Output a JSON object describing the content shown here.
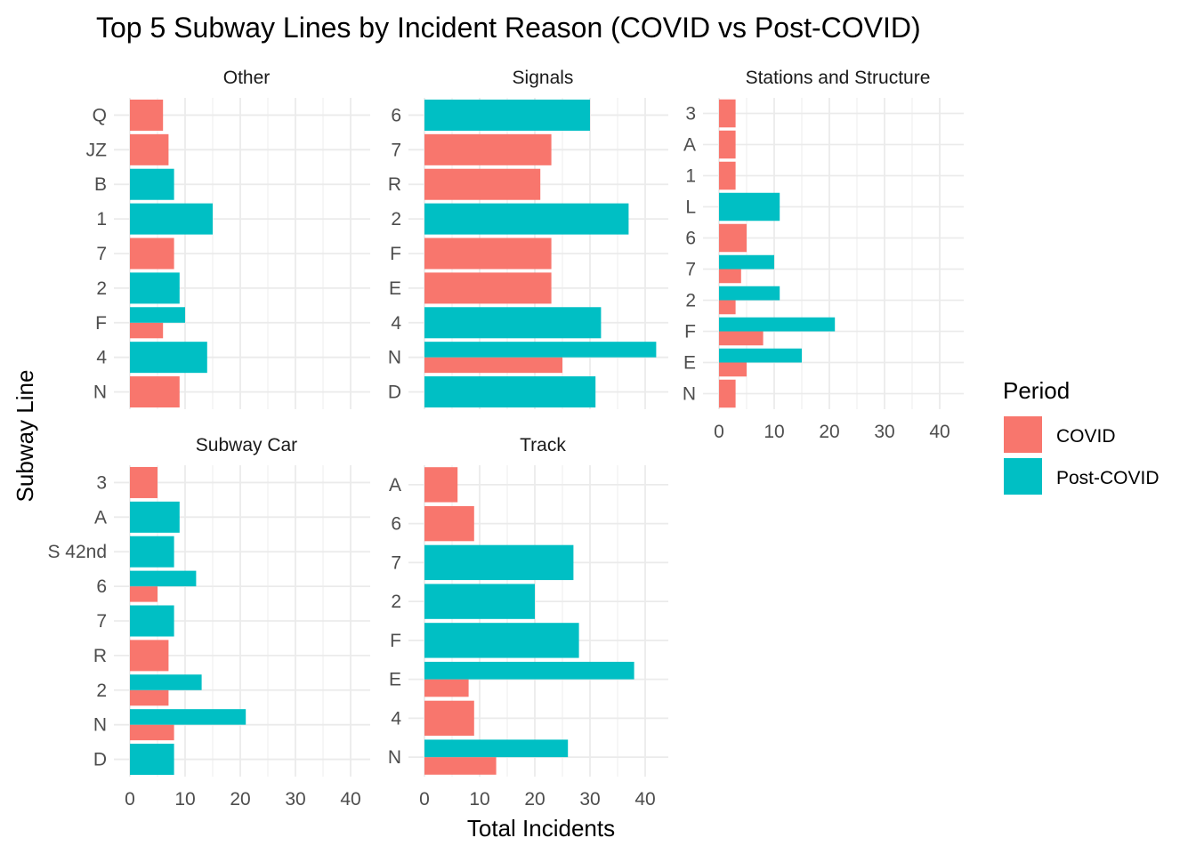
{
  "chart_data": {
    "type": "bar",
    "orientation": "horizontal",
    "title": "Top 5 Subway Lines by Incident Reason (COVID vs Post-COVID)",
    "xlabel": "Total Incidents",
    "ylabel": "Subway Line",
    "xlim": [
      0,
      44
    ],
    "xticks": [
      "0",
      "10",
      "20",
      "30",
      "40"
    ],
    "grid": true,
    "legend": {
      "title": "Period",
      "placement": "right",
      "entries": [
        {
          "name": "COVID",
          "color": "#F8766D"
        },
        {
          "name": "Post-COVID",
          "color": "#00BFC4"
        }
      ]
    },
    "panels": [
      {
        "name": "Other",
        "categories": [
          "Q",
          "JZ",
          "B",
          "1",
          "7",
          "2",
          "F",
          "4",
          "N"
        ],
        "series": [
          {
            "name": "COVID",
            "values": [
              6,
              7,
              null,
              null,
              8,
              null,
              6,
              null,
              9
            ]
          },
          {
            "name": "Post-COVID",
            "values": [
              null,
              null,
              8,
              15,
              null,
              9,
              10,
              14,
              null
            ]
          }
        ]
      },
      {
        "name": "Signals",
        "categories": [
          "6",
          "7",
          "R",
          "2",
          "F",
          "E",
          "4",
          "N",
          "D"
        ],
        "series": [
          {
            "name": "COVID",
            "values": [
              null,
              23,
              21,
              null,
              23,
              23,
              null,
              25,
              null
            ]
          },
          {
            "name": "Post-COVID",
            "values": [
              30,
              null,
              null,
              37,
              null,
              null,
              32,
              42,
              31
            ]
          }
        ]
      },
      {
        "name": "Stations and Structure",
        "categories": [
          "3",
          "A",
          "1",
          "L",
          "6",
          "7",
          "2",
          "F",
          "E",
          "N"
        ],
        "series": [
          {
            "name": "COVID",
            "values": [
              3,
              3,
              3,
              null,
              5,
              4,
              3,
              8,
              5,
              3
            ]
          },
          {
            "name": "Post-COVID",
            "values": [
              null,
              null,
              null,
              11,
              null,
              10,
              11,
              21,
              15,
              null
            ]
          }
        ]
      },
      {
        "name": "Subway Car",
        "categories": [
          "3",
          "A",
          "S 42nd",
          "6",
          "7",
          "R",
          "2",
          "N",
          "D"
        ],
        "series": [
          {
            "name": "COVID",
            "values": [
              5,
              null,
              null,
              5,
              null,
              7,
              7,
              8,
              null
            ]
          },
          {
            "name": "Post-COVID",
            "values": [
              null,
              9,
              8,
              12,
              8,
              null,
              13,
              21,
              8
            ]
          }
        ]
      },
      {
        "name": "Track",
        "categories": [
          "A",
          "6",
          "7",
          "2",
          "F",
          "E",
          "4",
          "N"
        ],
        "series": [
          {
            "name": "COVID",
            "values": [
              6,
              9,
              null,
              null,
              null,
              8,
              9,
              13
            ]
          },
          {
            "name": "Post-COVID",
            "values": [
              null,
              null,
              27,
              20,
              28,
              38,
              null,
              26
            ]
          }
        ]
      }
    ]
  }
}
